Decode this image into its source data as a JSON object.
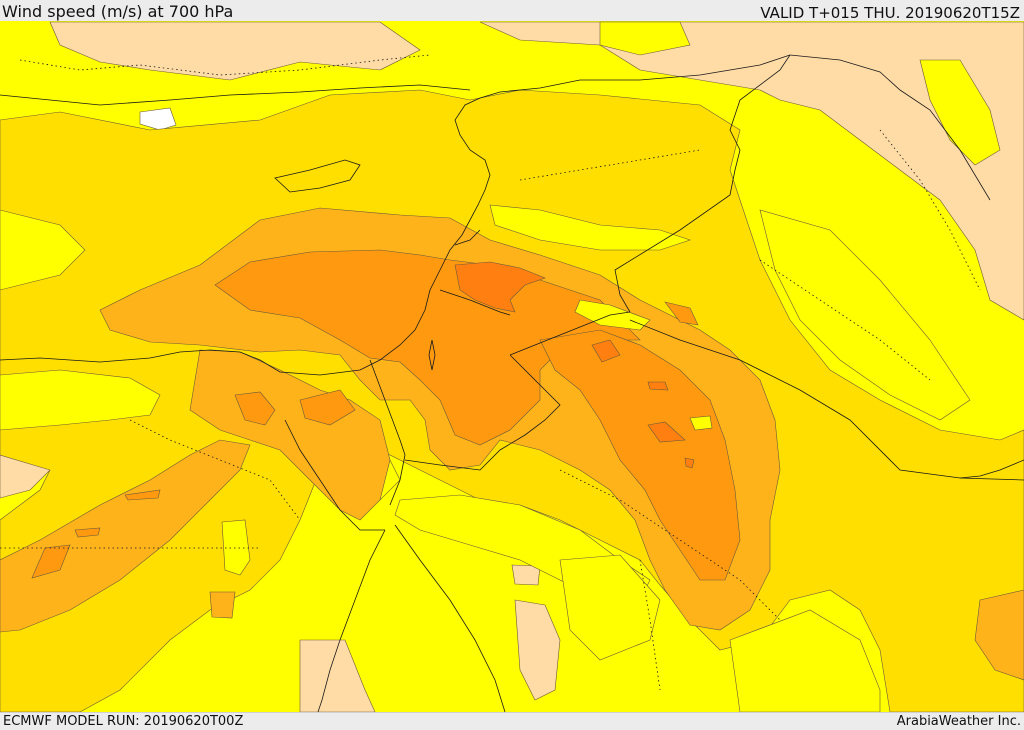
{
  "header": {
    "title": "Wind speed (m/s) at 700 hPa",
    "valid": "VALID T+015 THU. 20190620T15Z"
  },
  "footer": {
    "model_run": "ECMWF MODEL RUN: 20190620T00Z",
    "credit": "ArabiaWeather Inc."
  },
  "map": {
    "variable": "wind speed at 700 hPa",
    "fill_colors": {
      "calm": "#ffffff",
      "light": "#ffdca6",
      "moderate": "#ffff00",
      "fresh": "#ffdf00",
      "strong": "#ffb31a",
      "very_strong": "#ff9a10",
      "peak": "#ff7f10"
    },
    "line_colors": {
      "contour": "#6b5a3a",
      "border": "#1a1a1a",
      "province": "#1a1a1a"
    }
  }
}
